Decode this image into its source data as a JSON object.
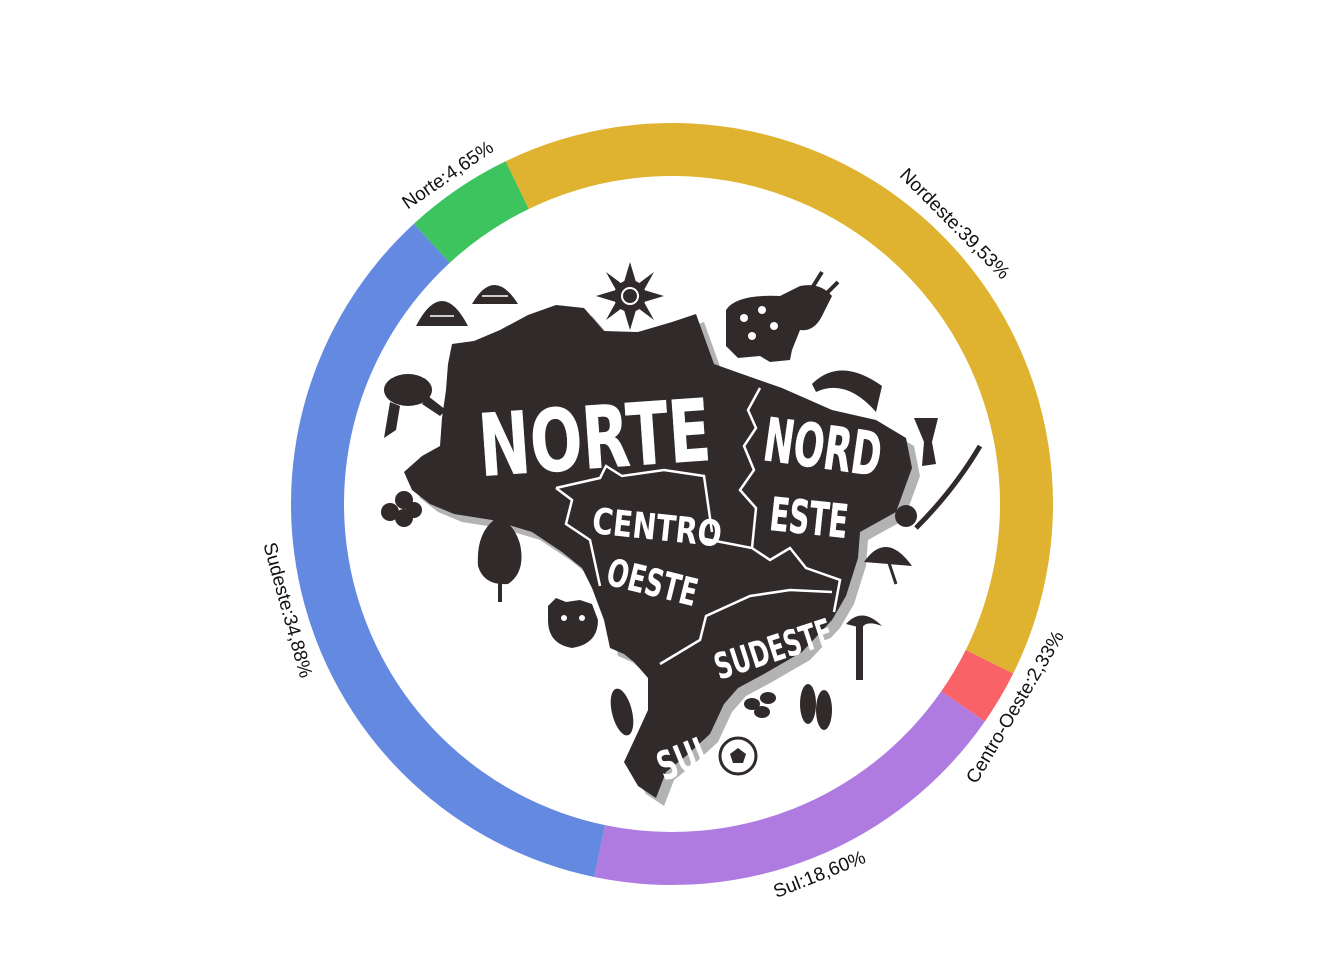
{
  "chart_data": {
    "type": "donut",
    "title": "",
    "series": [
      {
        "name": "Nordeste",
        "value": 39.53,
        "label": "Nordeste:39,53%",
        "color": "#dfb22f"
      },
      {
        "name": "Centro-Oeste",
        "value": 2.33,
        "label": "Centro-Oeste:2,33%",
        "color": "#f96367"
      },
      {
        "name": "Sul",
        "value": 18.6,
        "label": "Sul:18,60%",
        "color": "#b07be1"
      },
      {
        "name": "Sudeste",
        "value": 34.88,
        "label": "Sudeste:34,88%",
        "color": "#6489e0"
      },
      {
        "name": "Norte",
        "value": 4.65,
        "label": "Norte:4,65%",
        "color": "#3dc45f"
      }
    ],
    "legend": "none",
    "start_angle_deg": -25.9,
    "direction": "clockwise"
  },
  "map": {
    "labels": {
      "norte": "NORTE",
      "nord": "NORD",
      "este": "ESTE",
      "centro": "CENTRO",
      "oeste": "OESTE",
      "sudeste": "SUDESTE",
      "sul": "SUL"
    },
    "icons": [
      "huts-icon",
      "sun-icon",
      "ox-icon",
      "frog-icon",
      "hat-icon",
      "drum-icon",
      "berimbau-icon",
      "acai-icon",
      "tree-icon",
      "jaguar-icon",
      "umbrella-icon",
      "palm-tree-icon",
      "corn-icon",
      "beans-icon",
      "flip-flops-icon",
      "soccer-ball-icon"
    ]
  }
}
